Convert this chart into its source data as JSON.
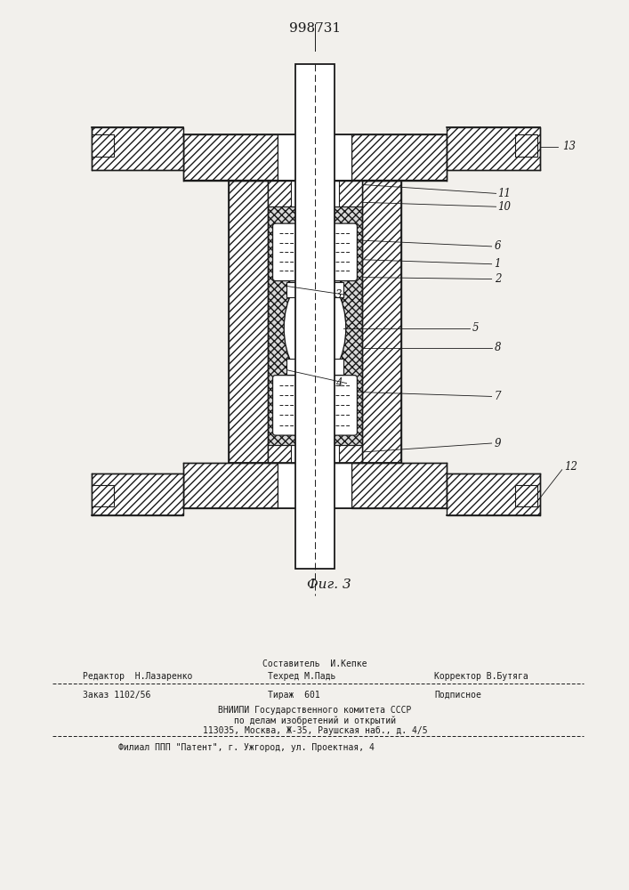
{
  "title": "998731",
  "fig_label": "Фиг. 3",
  "background_color": "#f2f0ec",
  "line_color": "#1a1a1a",
  "page_width": 7.07,
  "page_height": 10.0,
  "footer": {
    "sostavitel": "Составитель  И.Кепке",
    "redaktor": "Редактор  Н.Лазаренко",
    "tehred": "Техред М.Падь",
    "korrektor": "Корректор В.Бутяга",
    "zakaz": "Заказ 1102/56",
    "tirazh": "Тираж  601",
    "podpisnoe": "Подписное",
    "vniip1": "ВНИИПИ Государственного комитета СССР",
    "vniip2": "по делам изобретений и открытий",
    "vniip3": "113035, Москва, Ж-35, Раушская наб., д. 4/5",
    "filial": "Филиал ППП \"Патент\", г. Ужгород, ул. Проектная, 4"
  }
}
